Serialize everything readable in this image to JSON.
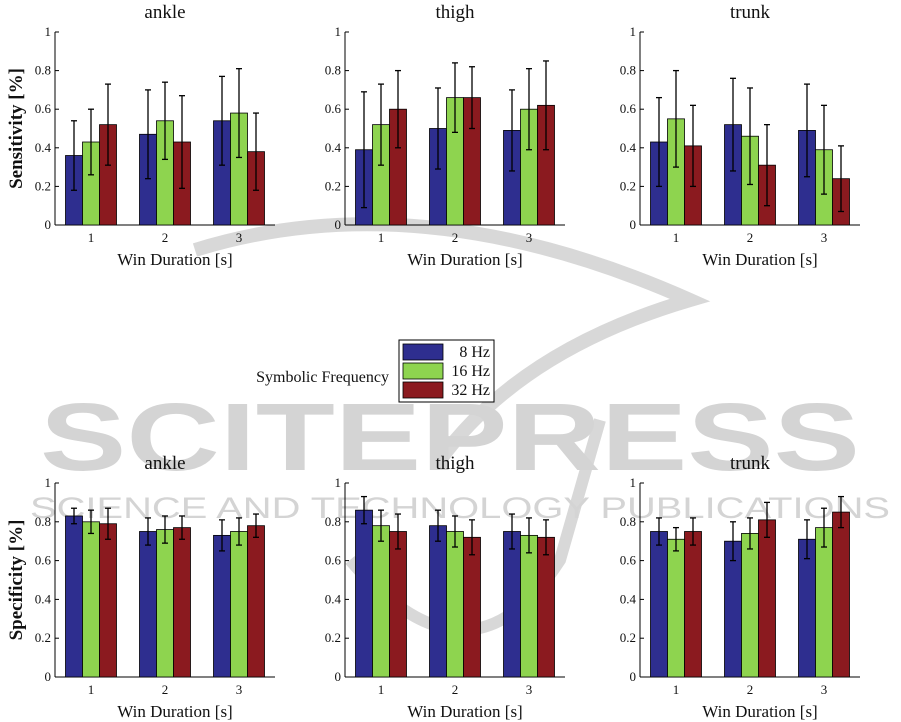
{
  "watermark": {
    "name": "SCITEPRESS",
    "subtitle": "SCIENCE AND TECHNOLOGY PUBLICATIONS"
  },
  "legend": {
    "title": "Symbolic Frequency"
  },
  "colors": {
    "8 Hz": "#2e2e8f",
    "16 Hz": "#8ed44f",
    "32 Hz": "#8b1a1f"
  },
  "chart_data": [
    {
      "type": "bar",
      "title": "ankle",
      "xlabel": "Win Duration [s]",
      "ylabel": "Sensitivity [%]",
      "categories": [
        "1",
        "2",
        "3"
      ],
      "ylim": [
        0,
        1
      ],
      "yticks": [
        "0",
        "0.2",
        "0.4",
        "0.6",
        "0.8",
        "1"
      ],
      "series": [
        {
          "name": "8 Hz",
          "values": [
            0.36,
            0.47,
            0.54
          ],
          "errors": [
            0.18,
            0.23,
            0.23
          ]
        },
        {
          "name": "16 Hz",
          "values": [
            0.43,
            0.54,
            0.58
          ],
          "errors": [
            0.17,
            0.2,
            0.23
          ]
        },
        {
          "name": "32 Hz",
          "values": [
            0.52,
            0.43,
            0.38
          ],
          "errors": [
            0.21,
            0.24,
            0.2
          ]
        }
      ]
    },
    {
      "type": "bar",
      "title": "thigh",
      "xlabel": "Win Duration [s]",
      "ylabel": "",
      "categories": [
        "1",
        "2",
        "3"
      ],
      "ylim": [
        0,
        1
      ],
      "yticks": [
        "0",
        "0.2",
        "0.4",
        "0.6",
        "0.8",
        "1"
      ],
      "series": [
        {
          "name": "8 Hz",
          "values": [
            0.39,
            0.5,
            0.49
          ],
          "errors": [
            0.3,
            0.21,
            0.21
          ]
        },
        {
          "name": "16 Hz",
          "values": [
            0.52,
            0.66,
            0.6
          ],
          "errors": [
            0.21,
            0.18,
            0.21
          ]
        },
        {
          "name": "32 Hz",
          "values": [
            0.6,
            0.66,
            0.62
          ],
          "errors": [
            0.2,
            0.16,
            0.23
          ]
        }
      ]
    },
    {
      "type": "bar",
      "title": "trunk",
      "xlabel": "Win Duration [s]",
      "ylabel": "",
      "categories": [
        "1",
        "2",
        "3"
      ],
      "ylim": [
        0,
        1
      ],
      "yticks": [
        "0",
        "0.2",
        "0.4",
        "0.6",
        "0.8",
        "1"
      ],
      "series": [
        {
          "name": "8 Hz",
          "values": [
            0.43,
            0.52,
            0.49
          ],
          "errors": [
            0.23,
            0.24,
            0.24
          ]
        },
        {
          "name": "16 Hz",
          "values": [
            0.55,
            0.46,
            0.39
          ],
          "errors": [
            0.25,
            0.25,
            0.23
          ]
        },
        {
          "name": "32 Hz",
          "values": [
            0.41,
            0.31,
            0.24
          ],
          "errors": [
            0.21,
            0.21,
            0.17
          ]
        }
      ]
    },
    {
      "type": "bar",
      "title": "ankle",
      "xlabel": "Win Duration [s]",
      "ylabel": "Specificity [%]",
      "categories": [
        "1",
        "2",
        "3"
      ],
      "ylim": [
        0,
        1
      ],
      "yticks": [
        "0",
        "0.2",
        "0.4",
        "0.6",
        "0.8",
        "1"
      ],
      "series": [
        {
          "name": "8 Hz",
          "values": [
            0.83,
            0.75,
            0.73
          ],
          "errors": [
            0.04,
            0.07,
            0.08
          ]
        },
        {
          "name": "16 Hz",
          "values": [
            0.8,
            0.76,
            0.75
          ],
          "errors": [
            0.06,
            0.07,
            0.07
          ]
        },
        {
          "name": "32 Hz",
          "values": [
            0.79,
            0.77,
            0.78
          ],
          "errors": [
            0.08,
            0.06,
            0.06
          ]
        }
      ]
    },
    {
      "type": "bar",
      "title": "thigh",
      "xlabel": "Win Duration [s]",
      "ylabel": "",
      "categories": [
        "1",
        "2",
        "3"
      ],
      "ylim": [
        0,
        1
      ],
      "yticks": [
        "0",
        "0.2",
        "0.4",
        "0.6",
        "0.8",
        "1"
      ],
      "series": [
        {
          "name": "8 Hz",
          "values": [
            0.86,
            0.78,
            0.75
          ],
          "errors": [
            0.07,
            0.08,
            0.09
          ]
        },
        {
          "name": "16 Hz",
          "values": [
            0.78,
            0.75,
            0.73
          ],
          "errors": [
            0.08,
            0.08,
            0.09
          ]
        },
        {
          "name": "32 Hz",
          "values": [
            0.75,
            0.72,
            0.72
          ],
          "errors": [
            0.09,
            0.09,
            0.09
          ]
        }
      ]
    },
    {
      "type": "bar",
      "title": "trunk",
      "xlabel": "Win Duration [s]",
      "ylabel": "",
      "categories": [
        "1",
        "2",
        "3"
      ],
      "ylim": [
        0,
        1
      ],
      "yticks": [
        "0",
        "0.2",
        "0.4",
        "0.6",
        "0.8",
        "1"
      ],
      "series": [
        {
          "name": "8 Hz",
          "values": [
            0.75,
            0.7,
            0.71
          ],
          "errors": [
            0.07,
            0.1,
            0.1
          ]
        },
        {
          "name": "16 Hz",
          "values": [
            0.71,
            0.74,
            0.77
          ],
          "errors": [
            0.06,
            0.08,
            0.1
          ]
        },
        {
          "name": "32 Hz",
          "values": [
            0.75,
            0.81,
            0.85
          ],
          "errors": [
            0.07,
            0.09,
            0.08
          ]
        }
      ]
    }
  ]
}
